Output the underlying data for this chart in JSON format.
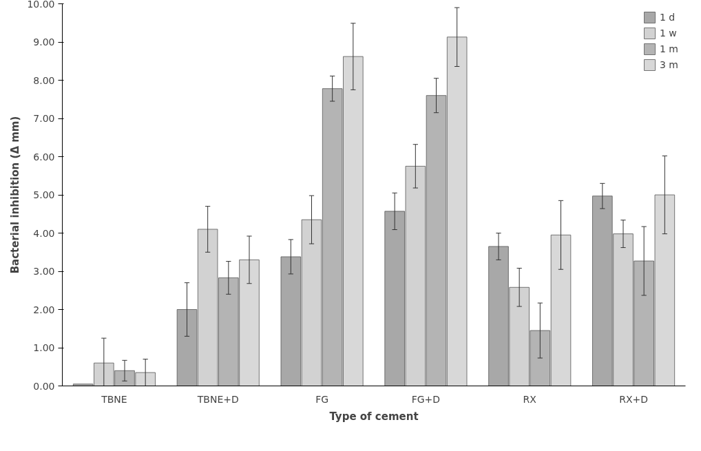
{
  "chart_data": {
    "type": "bar",
    "xlabel": "Type of cement",
    "ylabel": "Bacterial inhibition (Δ mm)",
    "categories": [
      "TBNE",
      "TBNE+D",
      "FG",
      "FG+D",
      "RX",
      "RX+D"
    ],
    "series": [
      {
        "name": "1 d",
        "color": "#a8a8a8",
        "values": [
          0.05,
          2.0,
          3.38,
          4.57,
          3.65,
          4.97
        ],
        "errors": [
          null,
          0.7,
          0.45,
          0.48,
          0.35,
          0.33
        ]
      },
      {
        "name": "1 w",
        "color": "#d2d2d2",
        "values": [
          0.6,
          4.1,
          4.35,
          5.75,
          2.58,
          3.98
        ],
        "errors": [
          0.65,
          0.6,
          0.63,
          0.57,
          0.5,
          0.36
        ]
      },
      {
        "name": "1 m",
        "color": "#b4b4b4",
        "values": [
          0.4,
          2.83,
          7.78,
          7.6,
          1.45,
          3.27
        ],
        "errors": [
          0.27,
          0.43,
          0.33,
          0.45,
          0.72,
          0.9
        ]
      },
      {
        "name": "3 m",
        "color": "#d8d8d8",
        "values": [
          0.35,
          3.3,
          8.62,
          9.13,
          3.95,
          5.0
        ],
        "errors": [
          0.35,
          0.62,
          0.87,
          0.77,
          0.9,
          1.02
        ]
      }
    ],
    "ylim": [
      0,
      10
    ],
    "yticks": [
      {
        "value": 0,
        "label": "0.00"
      },
      {
        "value": 1,
        "label": "1.00"
      },
      {
        "value": 2,
        "label": "2.00"
      },
      {
        "value": 3,
        "label": "3.00"
      },
      {
        "value": 4,
        "label": "4.00"
      },
      {
        "value": 5,
        "label": "5.00"
      },
      {
        "value": 6,
        "label": "6.00"
      },
      {
        "value": 7,
        "label": "7.00"
      },
      {
        "value": 8,
        "label": "8.00"
      },
      {
        "value": 9,
        "label": "9.00"
      },
      {
        "value": 10,
        "label": "10.00"
      }
    ],
    "grid": false,
    "legend": "top right"
  }
}
